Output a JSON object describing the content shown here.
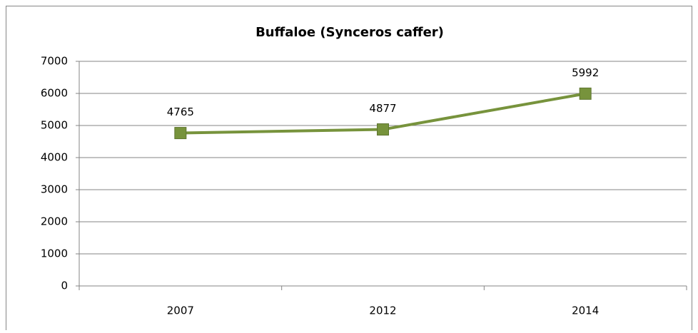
{
  "chart_data": {
    "type": "line",
    "title": "Buffaloe (Synceros caffer)",
    "categories": [
      "2007",
      "2012",
      "2014"
    ],
    "series": [
      {
        "name": "Buffaloe",
        "color": "#77933c",
        "values": [
          4765,
          4877,
          5992
        ]
      }
    ],
    "ylim": [
      0,
      7000
    ],
    "yticks": [
      0,
      1000,
      2000,
      3000,
      4000,
      5000,
      6000,
      7000
    ],
    "grid": true
  }
}
